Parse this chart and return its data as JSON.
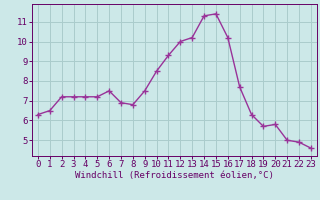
{
  "x": [
    0,
    1,
    2,
    3,
    4,
    5,
    6,
    7,
    8,
    9,
    10,
    11,
    12,
    13,
    14,
    15,
    16,
    17,
    18,
    19,
    20,
    21,
    22,
    23
  ],
  "y": [
    6.3,
    6.5,
    7.2,
    7.2,
    7.2,
    7.2,
    7.5,
    6.9,
    6.8,
    7.5,
    8.5,
    9.3,
    10.0,
    10.2,
    11.3,
    11.4,
    10.2,
    7.7,
    6.3,
    5.7,
    5.8,
    5.0,
    4.9,
    4.6
  ],
  "line_color": "#993399",
  "marker": "+",
  "markersize": 4,
  "linewidth": 1.0,
  "background_color": "#cce8e8",
  "grid_color": "#aacccc",
  "xlabel": "Windchill (Refroidissement éolien,°C)",
  "xlabel_fontsize": 6.5,
  "tick_fontsize": 6.5,
  "ylim": [
    4.2,
    11.9
  ],
  "yticks": [
    5,
    6,
    7,
    8,
    9,
    10,
    11
  ],
  "xlim": [
    -0.5,
    23.5
  ],
  "xticks": [
    0,
    1,
    2,
    3,
    4,
    5,
    6,
    7,
    8,
    9,
    10,
    11,
    12,
    13,
    14,
    15,
    16,
    17,
    18,
    19,
    20,
    21,
    22,
    23
  ],
  "text_color": "#660066",
  "spine_color": "#660066"
}
